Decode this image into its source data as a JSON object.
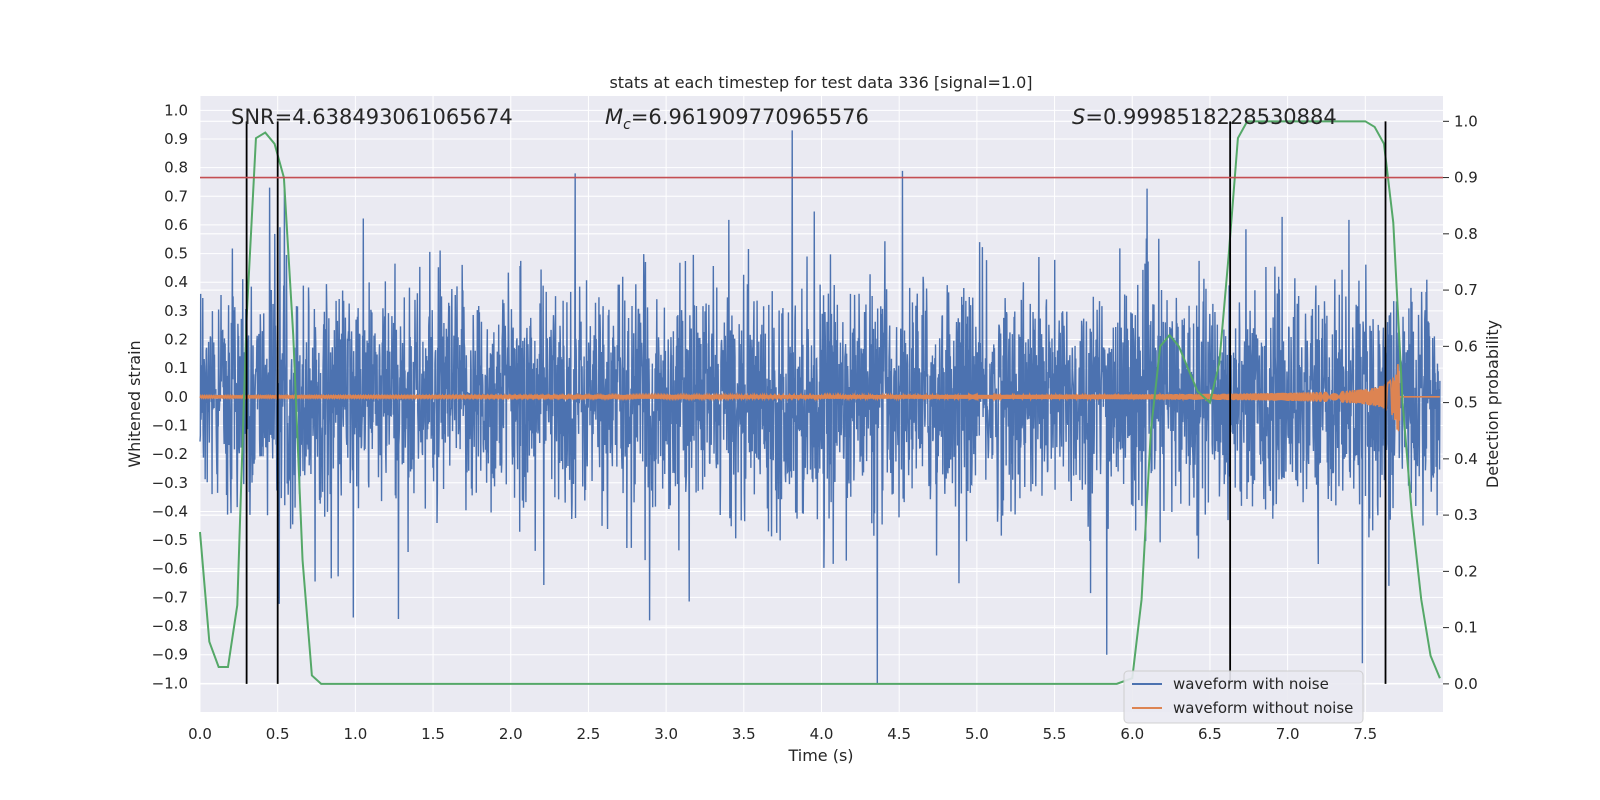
{
  "chart_data": {
    "type": "line",
    "title": "stats at each timestep for test data 336 [signal=1.0]",
    "xlabel": "Time (s)",
    "ylabel": "Whitened strain",
    "y2label": "Detection probability",
    "xlim": [
      0.0,
      8.0
    ],
    "ylim": [
      -1.1,
      1.05
    ],
    "y2lim": [
      -0.05,
      1.045
    ],
    "x_ticks": [
      0.0,
      0.5,
      1.0,
      1.5,
      2.0,
      2.5,
      3.0,
      3.5,
      4.0,
      4.5,
      5.0,
      5.5,
      6.0,
      6.5,
      7.0,
      7.5
    ],
    "x_tick_labels": [
      "0.0",
      "0.5",
      "1.0",
      "1.5",
      "2.0",
      "2.5",
      "3.0",
      "3.5",
      "4.0",
      "4.5",
      "5.0",
      "5.5",
      "6.0",
      "6.5",
      "7.0",
      "7.5"
    ],
    "y_ticks": [
      1.0,
      0.9,
      0.8,
      0.7,
      0.6,
      0.5,
      0.4,
      0.3,
      0.2,
      0.1,
      0.0,
      -0.1,
      -0.2,
      -0.3,
      -0.4,
      -0.5,
      -0.6,
      -0.7,
      -0.8,
      -0.9,
      -1.0
    ],
    "y_tick_labels": [
      "1.0",
      "0.9",
      "0.8",
      "0.7",
      "0.6",
      "0.5",
      "0.4",
      "0.3",
      "0.2",
      "0.1",
      "0.0",
      "−0.1",
      "−0.2",
      "−0.3",
      "−0.4",
      "−0.5",
      "−0.6",
      "−0.7",
      "−0.8",
      "−0.9",
      "−1.0"
    ],
    "y2_ticks": [
      1.0,
      0.9,
      0.8,
      0.7,
      0.6,
      0.5,
      0.4,
      0.3,
      0.2,
      0.1,
      0.0
    ],
    "y2_tick_labels": [
      "1.0",
      "0.9",
      "0.8",
      "0.7",
      "0.6",
      "0.5",
      "0.4",
      "0.3",
      "0.2",
      "0.1",
      "0.0"
    ],
    "grid": true,
    "legend_position": "lower-right",
    "annotations": {
      "snr": "SNR=4.638493061065674",
      "mc_symbol": "M",
      "mc_subscript": "c",
      "mc_value": "=6.961909770965576",
      "s_symbol": "S",
      "s_value": "=0.9998518228530884"
    },
    "threshold_line": {
      "y2": 0.9,
      "color": "#c44e52"
    },
    "vertical_lines_x": [
      0.3,
      0.5,
      6.63,
      7.63
    ],
    "series": [
      {
        "name": "waveform with noise",
        "color": "#4c72b0",
        "description_kind": "noise",
        "peaks": [
          [
            0.45,
            0.73
          ],
          [
            2.42,
            0.78
          ],
          [
            3.82,
            0.93
          ],
          [
            4.37,
            -1.0
          ],
          [
            5.85,
            -0.9
          ],
          [
            7.5,
            -0.93
          ],
          [
            0.99,
            -0.77
          ],
          [
            2.9,
            -0.78
          ]
        ]
      },
      {
        "name": "waveform without noise",
        "color": "#dd8452"
      },
      {
        "name": "",
        "color": "#55a868",
        "axis": "y2",
        "x": [
          0.0,
          0.06,
          0.12,
          0.18,
          0.24,
          0.3,
          0.36,
          0.42,
          0.48,
          0.54,
          0.6,
          0.66,
          0.72,
          0.78,
          0.84,
          5.9,
          6.0,
          6.06,
          6.12,
          6.18,
          6.24,
          6.3,
          6.36,
          6.42,
          6.5,
          6.56,
          6.62,
          6.68,
          6.74,
          6.8,
          7.5,
          7.56,
          7.62,
          7.68,
          7.74,
          7.8,
          7.86,
          7.92,
          7.98
        ],
        "values": [
          0.27,
          0.075,
          0.03,
          0.03,
          0.14,
          0.65,
          0.97,
          0.98,
          0.96,
          0.9,
          0.62,
          0.22,
          0.015,
          0.0,
          0.0,
          0.0,
          0.01,
          0.15,
          0.45,
          0.6,
          0.62,
          0.6,
          0.56,
          0.52,
          0.5,
          0.57,
          0.76,
          0.97,
          1.0,
          1.0,
          1.0,
          0.99,
          0.96,
          0.82,
          0.5,
          0.3,
          0.15,
          0.05,
          0.01
        ]
      }
    ]
  }
}
